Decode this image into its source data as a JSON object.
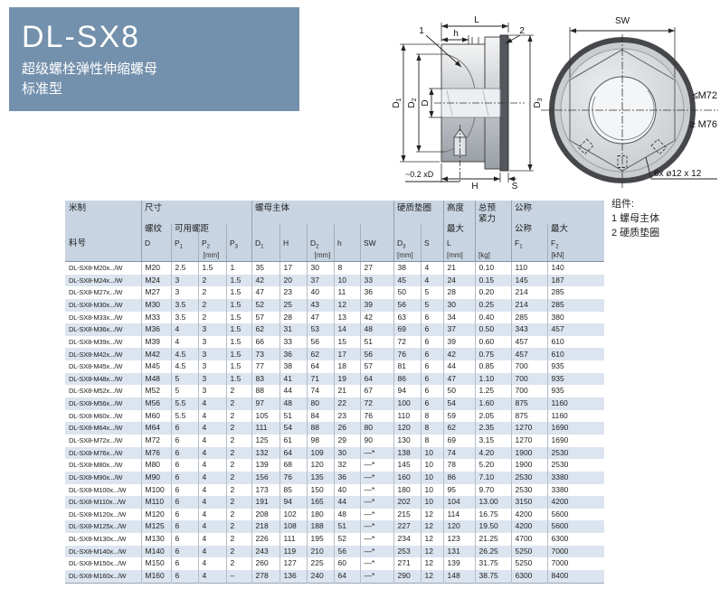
{
  "title_block": {
    "title": "DL-SX8",
    "subtitle1": "超级螺栓弹性伸缩螺母",
    "subtitle2": "标准型",
    "bg_color": "#7390ac"
  },
  "section_view": {
    "labels": {
      "part1": "1",
      "part2": "2",
      "l": "L",
      "h": "h",
      "d1": {
        "b": "D",
        "s": "1"
      },
      "d2": {
        "b": "D",
        "s": "2"
      },
      "d": "D",
      "d3": {
        "b": "D",
        "s": "3"
      },
      "point_note": "~0.2 xD",
      "H": "H",
      "s": "S"
    }
  },
  "front_view": {
    "labels": {
      "sw": "SW",
      "upper_limit": "≤M72",
      "lower_limit": "≥ M76",
      "holes": "6x ø12 x 12"
    }
  },
  "components_note": {
    "title": "组件:",
    "item1": "1 螺母主体",
    "item2": "2 硬质垫圈"
  },
  "table": {
    "groups": {
      "metric": "米制",
      "dimensions": "尺寸",
      "nut_body": "螺母主体",
      "washer": "硬质垫圈",
      "height": "高度",
      "preload_line1": "总预",
      "preload_line2": "紧力",
      "nominal": "公称"
    },
    "subheads": {
      "part_no": "料号",
      "thread": "螺纹",
      "usable_pitch": "可用螺距",
      "max_l": "最大",
      "nominal_f1": "公称",
      "max_f2": "最大",
      "d": "D",
      "p1": {
        "b": "P",
        "s": "1"
      },
      "p2": {
        "b": "P",
        "s": "2"
      },
      "p3": {
        "b": "P",
        "s": "3"
      },
      "d1": {
        "b": "D",
        "s": "1"
      },
      "H": "H",
      "d2": {
        "b": "D",
        "s": "2"
      },
      "h": "h",
      "sw": "SW",
      "d3": {
        "b": "D",
        "s": "3"
      },
      "s": "S",
      "l": "L",
      "f1": {
        "b": "F",
        "s": "1"
      },
      "f2": {
        "b": "F",
        "s": "2"
      }
    },
    "units": {
      "mm_pitch": "[mm]",
      "mm_body": "[mm]",
      "mm_washer": "[mm]",
      "mm_height": "[mm]",
      "kg": "[kg]",
      "kn": "[kN]"
    },
    "rows": [
      [
        "DL-SX8-M20x.../W",
        "M20",
        "2.5",
        "1.5",
        "1",
        "35",
        "17",
        "30",
        "8",
        "27",
        "38",
        "4",
        "21",
        "0.10",
        "110",
        "140"
      ],
      [
        "DL-SX8-M24x.../W",
        "M24",
        "3",
        "2",
        "1.5",
        "42",
        "20",
        "37",
        "10",
        "33",
        "45",
        "4",
        "24",
        "0.15",
        "145",
        "187"
      ],
      [
        "DL-SX8-M27x.../W",
        "M27",
        "3",
        "2",
        "1.5",
        "47",
        "23",
        "40",
        "11",
        "36",
        "50",
        "5",
        "28",
        "0.20",
        "214",
        "285"
      ],
      [
        "DL-SX8-M30x.../W",
        "M30",
        "3.5",
        "2",
        "1.5",
        "52",
        "25",
        "43",
        "12",
        "39",
        "56",
        "5",
        "30",
        "0.25",
        "214",
        "285"
      ],
      [
        "DL-SX8-M33x.../W",
        "M33",
        "3.5",
        "2",
        "1.5",
        "57",
        "28",
        "47",
        "13",
        "42",
        "63",
        "6",
        "34",
        "0.40",
        "285",
        "380"
      ],
      [
        "DL-SX8-M36x.../W",
        "M36",
        "4",
        "3",
        "1.5",
        "62",
        "31",
        "53",
        "14",
        "48",
        "69",
        "6",
        "37",
        "0.50",
        "343",
        "457"
      ],
      [
        "DL-SX8-M39x.../W",
        "M39",
        "4",
        "3",
        "1.5",
        "66",
        "33",
        "56",
        "15",
        "51",
        "72",
        "6",
        "39",
        "0.60",
        "457",
        "610"
      ],
      [
        "DL-SX8-M42x.../W",
        "M42",
        "4.5",
        "3",
        "1.5",
        "73",
        "36",
        "62",
        "17",
        "56",
        "76",
        "6",
        "42",
        "0.75",
        "457",
        "610"
      ],
      [
        "DL-SX8-M45x.../W",
        "M45",
        "4.5",
        "3",
        "1.5",
        "77",
        "38",
        "64",
        "18",
        "57",
        "81",
        "6",
        "44",
        "0.85",
        "700",
        "935"
      ],
      [
        "DL-SX8-M48x.../W",
        "M48",
        "5",
        "3",
        "1.5",
        "83",
        "41",
        "71",
        "19",
        "64",
        "86",
        "6",
        "47",
        "1.10",
        "700",
        "935"
      ],
      [
        "DL-SX8-M52x.../W",
        "M52",
        "5",
        "3",
        "2",
        "88",
        "44",
        "74",
        "21",
        "67",
        "94",
        "6",
        "50",
        "1.25",
        "700",
        "935"
      ],
      [
        "DL-SX8-M56x.../W",
        "M56",
        "5.5",
        "4",
        "2",
        "97",
        "48",
        "80",
        "22",
        "72",
        "100",
        "6",
        "54",
        "1.60",
        "875",
        "1160"
      ],
      [
        "DL-SX8-M60x.../W",
        "M60",
        "5.5",
        "4",
        "2",
        "105",
        "51",
        "84",
        "23",
        "76",
        "110",
        "8",
        "59",
        "2.05",
        "875",
        "1160"
      ],
      [
        "DL-SX8-M64x.../W",
        "M64",
        "6",
        "4",
        "2",
        "111",
        "54",
        "88",
        "26",
        "80",
        "120",
        "8",
        "62",
        "2.35",
        "1270",
        "1690"
      ],
      [
        "DL-SX8-M72x.../W",
        "M72",
        "6",
        "4",
        "2",
        "125",
        "61",
        "98",
        "29",
        "90",
        "130",
        "8",
        "69",
        "3.15",
        "1270",
        "1690"
      ],
      [
        "DL-SX8-M76x.../W",
        "M76",
        "6",
        "4",
        "2",
        "132",
        "64",
        "109",
        "30",
        "—*",
        "138",
        "10",
        "74",
        "4.20",
        "1900",
        "2530"
      ],
      [
        "DL-SX8-M80x.../W",
        "M80",
        "6",
        "4",
        "2",
        "139",
        "68",
        "120",
        "32",
        "—*",
        "145",
        "10",
        "78",
        "5.20",
        "1900",
        "2530"
      ],
      [
        "DL-SX8-M90x.../W",
        "M90",
        "6",
        "4",
        "2",
        "156",
        "76",
        "135",
        "36",
        "—*",
        "160",
        "10",
        "86",
        "7.10",
        "2530",
        "3380"
      ],
      [
        "DL-SX8-M100x.../W",
        "M100",
        "6",
        "4",
        "2",
        "173",
        "85",
        "150",
        "40",
        "—*",
        "180",
        "10",
        "95",
        "9.70",
        "2530",
        "3380"
      ],
      [
        "DL-SX8-M110x.../W",
        "M110",
        "6",
        "4",
        "2",
        "191",
        "94",
        "165",
        "44",
        "—*",
        "202",
        "10",
        "104",
        "13.00",
        "3150",
        "4200"
      ],
      [
        "DL-SX8-M120x.../W",
        "M120",
        "6",
        "4",
        "2",
        "208",
        "102",
        "180",
        "48",
        "—*",
        "215",
        "12",
        "114",
        "16.75",
        "4200",
        "5600"
      ],
      [
        "DL-SX8-M125x.../W",
        "M125",
        "6",
        "4",
        "2",
        "218",
        "108",
        "188",
        "51",
        "—*",
        "227",
        "12",
        "120",
        "19.50",
        "4200",
        "5600"
      ],
      [
        "DL-SX8-M130x.../W",
        "M130",
        "6",
        "4",
        "2",
        "226",
        "111",
        "195",
        "52",
        "—*",
        "234",
        "12",
        "123",
        "21.25",
        "4700",
        "6300"
      ],
      [
        "DL-SX8-M140x.../W",
        "M140",
        "6",
        "4",
        "2",
        "243",
        "119",
        "210",
        "56",
        "—*",
        "253",
        "12",
        "131",
        "26.25",
        "5250",
        "7000"
      ],
      [
        "DL-SX8-M150x.../W",
        "M150",
        "6",
        "4",
        "2",
        "260",
        "127",
        "225",
        "60",
        "—*",
        "271",
        "12",
        "139",
        "31.75",
        "5250",
        "7000"
      ],
      [
        "DL-SX8-M160x.../W",
        "M160",
        "6",
        "4",
        "–",
        "278",
        "136",
        "240",
        "64",
        "—*",
        "290",
        "12",
        "148",
        "38.75",
        "6300",
        "8400"
      ]
    ]
  }
}
